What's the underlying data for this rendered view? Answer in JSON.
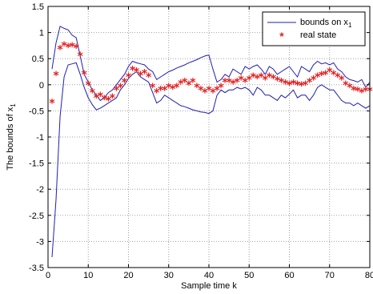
{
  "chart_data": {
    "type": "line",
    "title": "",
    "xlabel": "Sample time k",
    "ylabel": "The bounds of x",
    "ylabel_sub": "1",
    "xlim": [
      0,
      80
    ],
    "ylim": [
      -3.5,
      1.5
    ],
    "x_ticks": [
      0,
      10,
      20,
      30,
      40,
      50,
      60,
      70,
      80
    ],
    "y_ticks": [
      -3.5,
      -3,
      -2.5,
      -2,
      -1.5,
      -1,
      -0.5,
      0,
      0.5,
      1,
      1.5
    ],
    "x_tick_labels": [
      "0",
      "10",
      "20",
      "30",
      "40",
      "50",
      "60",
      "70",
      "80"
    ],
    "y_tick_labels": [
      "-3.5",
      "-3",
      "-2.5",
      "-2",
      "-1.5",
      "-1",
      "-0.5",
      "0",
      "0.5",
      "1",
      "1.5"
    ],
    "grid": true,
    "legend_position": "top-right",
    "colors": {
      "bounds": "#1f1fb4",
      "real_state": "#e02020",
      "grid": "#a0a0a0"
    },
    "x": [
      1,
      2,
      3,
      4,
      5,
      6,
      7,
      8,
      9,
      10,
      11,
      12,
      13,
      14,
      15,
      16,
      17,
      18,
      19,
      20,
      21,
      22,
      23,
      24,
      25,
      26,
      27,
      28,
      29,
      30,
      31,
      32,
      33,
      34,
      35,
      36,
      37,
      38,
      39,
      40,
      41,
      42,
      43,
      44,
      45,
      46,
      47,
      48,
      49,
      50,
      51,
      52,
      53,
      54,
      55,
      56,
      57,
      58,
      59,
      60,
      61,
      62,
      63,
      64,
      65,
      66,
      67,
      68,
      69,
      70,
      71,
      72,
      73,
      74,
      75,
      76,
      77,
      78,
      79,
      80
    ],
    "series": [
      {
        "name": "bounds on x",
        "name_sub": "1",
        "style": "line",
        "upper": [
          0.3,
          0.8,
          1.12,
          1.08,
          1.05,
          0.95,
          0.9,
          0.55,
          0.2,
          0.05,
          -0.1,
          -0.2,
          -0.3,
          -0.25,
          -0.15,
          -0.1,
          0.0,
          0.1,
          0.2,
          0.35,
          0.45,
          0.42,
          0.4,
          0.38,
          0.3,
          0.25,
          0.1,
          0.15,
          0.2,
          0.25,
          0.28,
          0.32,
          0.35,
          0.38,
          0.42,
          0.45,
          0.48,
          0.52,
          0.55,
          0.57,
          0.3,
          0.05,
          0.1,
          0.2,
          0.15,
          0.3,
          0.25,
          0.2,
          0.35,
          0.3,
          0.35,
          0.38,
          0.3,
          0.2,
          0.35,
          0.3,
          0.2,
          0.25,
          0.3,
          0.35,
          0.25,
          0.15,
          0.35,
          0.3,
          0.25,
          0.38,
          0.45,
          0.4,
          0.42,
          0.38,
          0.42,
          0.3,
          0.25,
          0.15,
          0.1,
          0.08,
          0.05,
          0.1,
          -0.05,
          0.05
        ],
        "lower": [
          -3.3,
          -2.2,
          -0.6,
          0.15,
          0.38,
          0.4,
          0.42,
          0.2,
          -0.05,
          -0.25,
          -0.38,
          -0.48,
          -0.45,
          -0.4,
          -0.35,
          -0.3,
          -0.25,
          -0.1,
          0.0,
          0.12,
          0.2,
          0.25,
          0.15,
          0.1,
          0.05,
          -0.15,
          -0.35,
          -0.3,
          -0.2,
          -0.25,
          -0.3,
          -0.35,
          -0.4,
          -0.42,
          -0.45,
          -0.48,
          -0.5,
          -0.52,
          -0.53,
          -0.55,
          -0.5,
          -0.2,
          -0.1,
          -0.15,
          -0.1,
          -0.1,
          -0.05,
          -0.08,
          -0.05,
          -0.1,
          -0.2,
          -0.05,
          -0.1,
          -0.2,
          -0.2,
          -0.25,
          -0.3,
          -0.2,
          -0.25,
          -0.18,
          -0.1,
          -0.25,
          -0.2,
          -0.2,
          -0.3,
          -0.2,
          -0.05,
          0.0,
          -0.05,
          -0.1,
          -0.1,
          -0.2,
          -0.3,
          -0.35,
          -0.35,
          -0.4,
          -0.35,
          -0.4,
          -0.45,
          -0.4
        ]
      },
      {
        "name": "real state",
        "style": "marker",
        "values": [
          -0.35,
          0.18,
          0.68,
          0.75,
          0.72,
          0.73,
          0.7,
          0.55,
          0.2,
          0.0,
          -0.15,
          -0.25,
          -0.22,
          -0.28,
          -0.3,
          -0.25,
          -0.1,
          -0.05,
          0.05,
          0.15,
          0.28,
          0.25,
          0.18,
          0.22,
          0.15,
          -0.05,
          -0.15,
          -0.1,
          -0.1,
          -0.05,
          -0.08,
          -0.05,
          0.02,
          0.05,
          0.0,
          0.05,
          -0.05,
          -0.1,
          -0.15,
          -0.1,
          -0.15,
          -0.1,
          -0.05,
          0.05,
          0.05,
          0.02,
          0.05,
          0.1,
          0.05,
          0.1,
          0.15,
          0.12,
          0.15,
          0.1,
          0.15,
          0.12,
          0.08,
          0.05,
          0.02,
          0.0,
          0.02,
          0.0,
          -0.02,
          0.0,
          0.05,
          0.1,
          0.15,
          0.18,
          0.2,
          0.25,
          0.2,
          0.15,
          0.1,
          0.0,
          -0.05,
          -0.1,
          -0.12,
          -0.15,
          -0.12,
          -0.12
        ]
      }
    ]
  }
}
